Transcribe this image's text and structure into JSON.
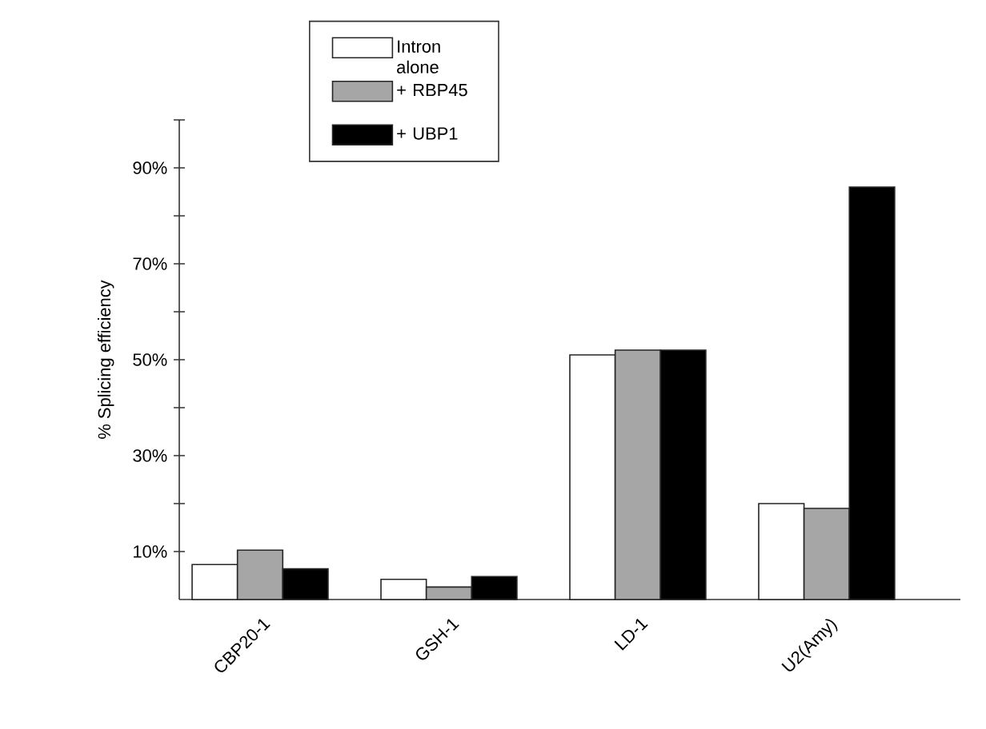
{
  "chart_data": {
    "type": "bar",
    "ylabel": "% Splicing efficiency",
    "categories": [
      "CBP20-1",
      "GSH-1",
      "LD-1",
      "U2(Amy)"
    ],
    "series": [
      {
        "name": "Intron alone",
        "color": "#ffffff",
        "values": [
          7.3,
          4.2,
          51,
          20
        ]
      },
      {
        "name": "+ RBP45",
        "color": "#a6a6a6",
        "values": [
          10.3,
          2.6,
          52,
          19
        ]
      },
      {
        "name": "+ UBP1",
        "color": "#000000",
        "values": [
          6.4,
          4.8,
          52,
          86
        ]
      }
    ],
    "ylim": [
      0,
      100
    ],
    "yticks": [
      {
        "value": 10,
        "label": "10%"
      },
      {
        "value": 20,
        "label": null
      },
      {
        "value": 30,
        "label": "30%"
      },
      {
        "value": 40,
        "label": null
      },
      {
        "value": 50,
        "label": "50%"
      },
      {
        "value": 60,
        "label": null
      },
      {
        "value": 70,
        "label": "70%"
      },
      {
        "value": 80,
        "label": null
      },
      {
        "value": 90,
        "label": "90%"
      },
      {
        "value": 100,
        "label": null
      }
    ],
    "grid": false,
    "legend": "top"
  }
}
